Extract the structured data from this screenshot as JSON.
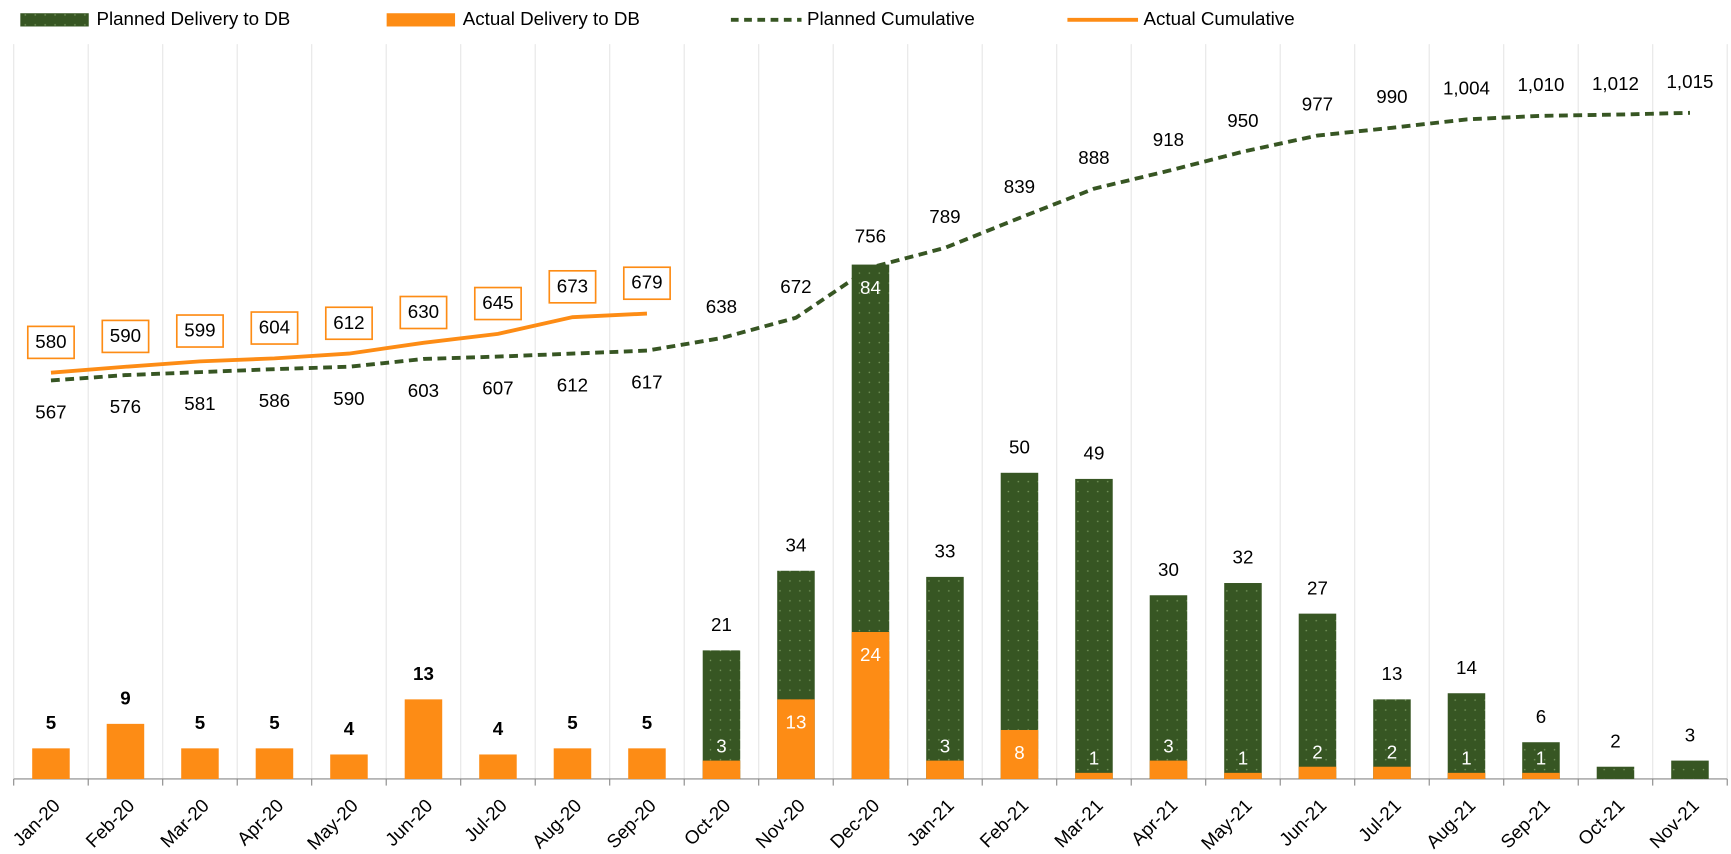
{
  "chart_data": {
    "type": "combo",
    "categories": [
      "Jan-20",
      "Feb-20",
      "Mar-20",
      "Apr-20",
      "May-20",
      "Jun-20",
      "Jul-20",
      "Aug-20",
      "Sep-20",
      "Oct-20",
      "Nov-20",
      "Dec-20",
      "Jan-21",
      "Feb-21",
      "Mar-21",
      "Apr-21",
      "May-21",
      "Jun-21",
      "Jul-21",
      "Aug-21",
      "Sep-21",
      "Oct-21",
      "Nov-21"
    ],
    "series": [
      {
        "name": "Planned Delivery to DB",
        "type": "bar",
        "color": "#375623",
        "values": [
          null,
          null,
          null,
          null,
          null,
          null,
          null,
          null,
          null,
          21,
          34,
          84,
          33,
          50,
          49,
          30,
          32,
          27,
          13,
          14,
          6,
          2,
          3
        ]
      },
      {
        "name": "Actual Delivery to DB",
        "type": "bar",
        "color": "#fd8c15",
        "values": [
          5,
          9,
          5,
          5,
          4,
          13,
          4,
          5,
          5,
          3,
          13,
          24,
          3,
          8,
          1,
          3,
          1,
          2,
          2,
          1,
          1,
          null,
          null
        ]
      },
      {
        "name": "Planned Cumulative",
        "type": "line",
        "dashed": true,
        "axis": "y2",
        "color": "#375623",
        "values": [
          567,
          576,
          581,
          586,
          590,
          603,
          607,
          612,
          617,
          638,
          672,
          756,
          789,
          839,
          888,
          918,
          950,
          977,
          990,
          1004,
          1010,
          1012,
          1015
        ],
        "value_labels": [
          "567",
          "576",
          "581",
          "586",
          "590",
          "603",
          "607",
          "612",
          "617",
          "638",
          "672",
          "756",
          "789",
          "839",
          "888",
          "918",
          "950",
          "977",
          "990",
          "1,004",
          "1,010",
          "1,012",
          "1,015"
        ]
      },
      {
        "name": "Actual Cumulative",
        "type": "line",
        "axis": "y2",
        "color": "#fd8c15",
        "values": [
          580,
          590,
          599,
          604,
          612,
          630,
          645,
          673,
          679,
          null,
          null,
          null,
          null,
          null,
          null,
          null,
          null,
          null,
          null,
          null,
          null,
          null,
          null
        ]
      }
    ],
    "ylim": [
      0,
      120
    ],
    "y2lim": [
      -100,
      1130
    ],
    "grid": "vertical"
  }
}
